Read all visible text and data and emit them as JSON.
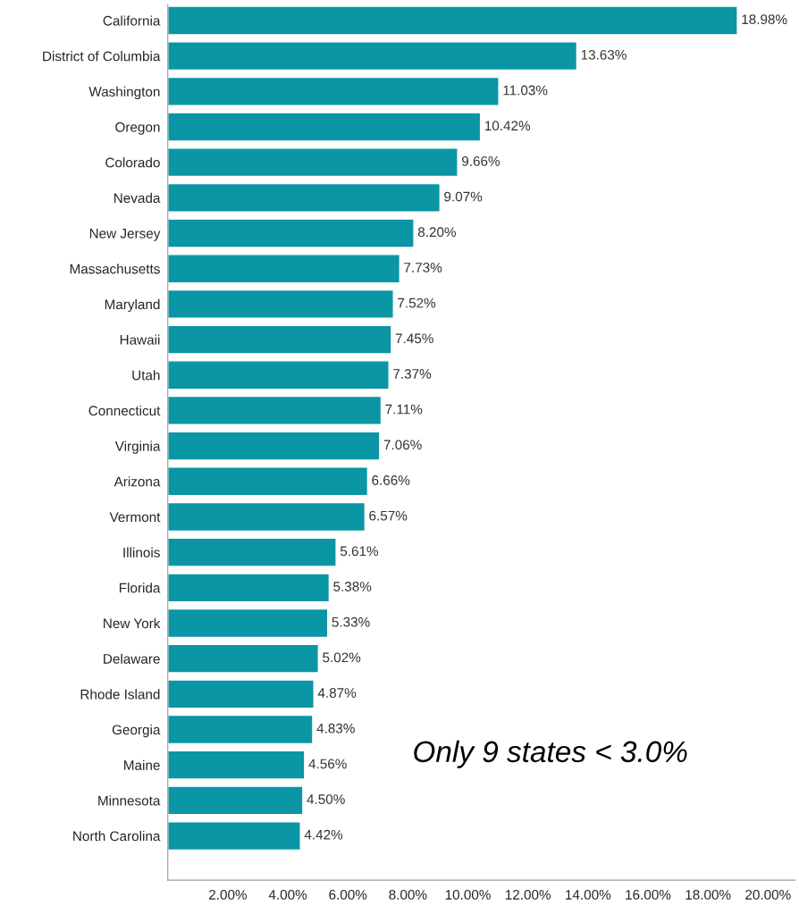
{
  "chart_data": {
    "type": "bar",
    "orientation": "horizontal",
    "categories": [
      "California",
      "District of Columbia",
      "Washington",
      "Oregon",
      "Colorado",
      "Nevada",
      "New Jersey",
      "Massachusetts",
      "Maryland",
      "Hawaii",
      "Utah",
      "Connecticut",
      "Virginia",
      "Arizona",
      "Vermont",
      "Illinois",
      "Florida",
      "New York",
      "Delaware",
      "Rhode Island",
      "Georgia",
      "Maine",
      "Minnesota",
      "North Carolina"
    ],
    "values": [
      18.98,
      13.63,
      11.03,
      10.42,
      9.66,
      9.07,
      8.2,
      7.73,
      7.52,
      7.45,
      7.37,
      7.11,
      7.06,
      6.66,
      6.57,
      5.61,
      5.38,
      5.33,
      5.02,
      4.87,
      4.83,
      4.56,
      4.5,
      4.42
    ],
    "value_labels": [
      "18.98%",
      "13.63%",
      "11.03%",
      "10.42%",
      "9.66%",
      "9.07%",
      "8.20%",
      "7.73%",
      "7.52%",
      "7.45%",
      "7.37%",
      "7.11%",
      "7.06%",
      "6.66%",
      "6.57%",
      "5.61%",
      "5.38%",
      "5.33%",
      "5.02%",
      "4.87%",
      "4.83%",
      "4.56%",
      "4.50%",
      "4.42%"
    ],
    "color": "#0a96a4",
    "xlim": [
      0,
      20.9
    ],
    "xticks": [
      {
        "value": 2,
        "label": "2.00%"
      },
      {
        "value": 4,
        "label": "4.00%"
      },
      {
        "value": 6,
        "label": "6.00%"
      },
      {
        "value": 8,
        "label": "8.00%"
      },
      {
        "value": 10,
        "label": "10.00%"
      },
      {
        "value": 12,
        "label": "12.00%"
      },
      {
        "value": 14,
        "label": "14.00%"
      },
      {
        "value": 16,
        "label": "16.00%"
      },
      {
        "value": 18,
        "label": "18.00%"
      },
      {
        "value": 20,
        "label": "20.00%"
      }
    ],
    "grid": false,
    "legend": false,
    "annotations": [
      "Only 9 states < 3.0%"
    ]
  }
}
